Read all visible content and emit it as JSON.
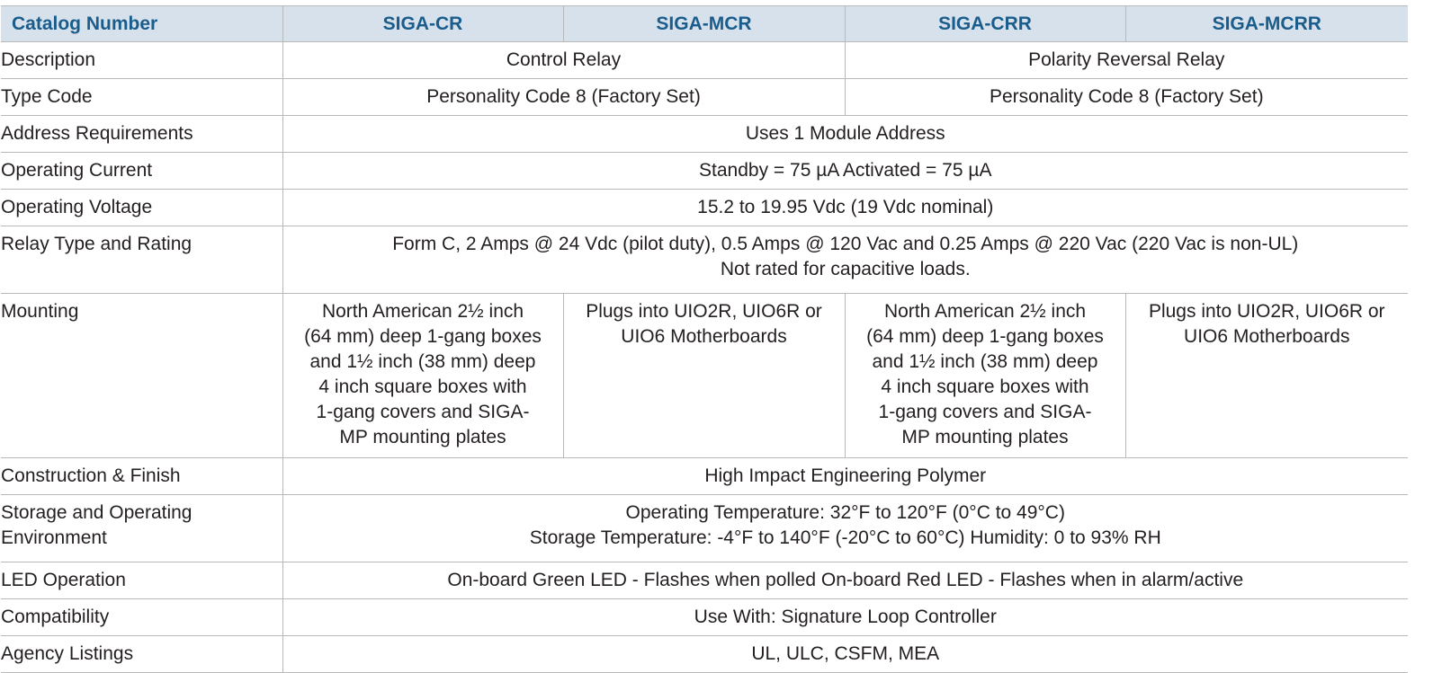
{
  "header": {
    "label": "Catalog Number",
    "models": [
      "SIGA-CR",
      "SIGA-MCR",
      "SIGA-CRR",
      "SIGA-MCRR"
    ]
  },
  "rows": {
    "description": {
      "label": "Description",
      "cr": "Control Relay",
      "crr": "Polarity Reversal Relay"
    },
    "type_code": {
      "label": "Type Code",
      "cr": "Personality Code 8 (Factory Set)",
      "crr": "Personality Code 8 (Factory Set)"
    },
    "address": {
      "label": "Address Requirements",
      "value": "Uses 1 Module Address"
    },
    "current": {
      "label": "Operating Current",
      "value": "Standby = 75 µA Activated = 75 µA"
    },
    "voltage": {
      "label": "Operating Voltage",
      "value": "15.2 to 19.95 Vdc (19 Vdc nominal)"
    },
    "relay": {
      "label": "Relay Type and Rating",
      "line1": "Form C, 2 Amps @ 24 Vdc (pilot duty), 0.5 Amps @ 120 Vac and 0.25 Amps @ 220 Vac (220 Vac is non-UL)",
      "line2": "Not rated for capacitive loads."
    },
    "mounting": {
      "label": "Mounting",
      "box": [
        "North American 2½ inch",
        "(64 mm) deep 1-gang boxes",
        "and 1½ inch (38 mm) deep",
        "4 inch square boxes  with",
        "1-gang covers and SIGA-",
        "MP mounting  plates"
      ],
      "plug": [
        "Plugs into UIO2R, UIO6R or",
        "UIO6 Motherboards"
      ]
    },
    "construction": {
      "label": "Construction & Finish",
      "value": "High Impact Engineering Polymer"
    },
    "environment": {
      "label_line1": "Storage and Operating",
      "label_line2": "Environment",
      "line1": "Operating Temperature: 32°F to 120°F (0°C to 49°C)",
      "line2": "Storage Temperature: -4°F to 140°F (-20°C to 60°C) Humidity: 0 to 93% RH"
    },
    "led": {
      "label": "LED Operation",
      "value": "On-board Green LED - Flashes when polled On-board Red LED - Flashes when in alarm/active"
    },
    "compat": {
      "label": "Compatibility",
      "value": "Use With: Signature Loop Controller"
    },
    "agency": {
      "label": "Agency Listings",
      "value": "UL, ULC, CSFM, MEA"
    }
  }
}
